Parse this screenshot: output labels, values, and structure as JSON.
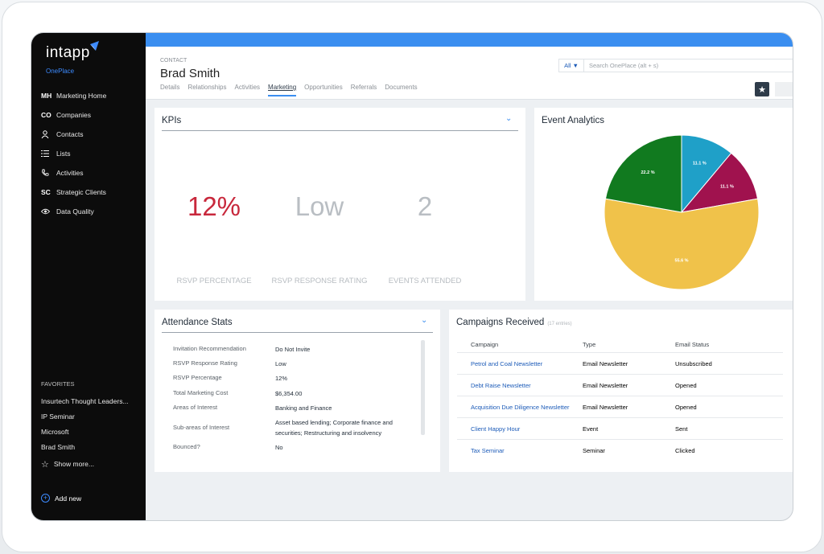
{
  "brand": {
    "logo": "intapp",
    "subbrand": "OnePlace"
  },
  "sidebar": {
    "items": [
      {
        "icon_text": "MH",
        "label": "Marketing Home"
      },
      {
        "icon_text": "CO",
        "label": "Companies"
      },
      {
        "icon_text": "",
        "icon": "person-icon",
        "label": "Contacts"
      },
      {
        "icon_text": "",
        "icon": "list-icon",
        "label": "Lists"
      },
      {
        "icon_text": "",
        "icon": "phone-icon",
        "label": "Activities"
      },
      {
        "icon_text": "SC",
        "label": "Strategic Clients"
      },
      {
        "icon_text": "",
        "icon": "eye-icon",
        "label": "Data Quality"
      }
    ],
    "favorites_heading": "FAVORITES",
    "favorites": [
      "Insurtech Thought Leaders...",
      "IP Seminar",
      "Microsoft",
      "Brad Smith"
    ],
    "show_more": "Show more...",
    "add_new": "Add new"
  },
  "header": {
    "contact_label": "CONTACT",
    "contact_name": "Brad Smith",
    "tabs": [
      "Details",
      "Relationships",
      "Activities",
      "Marketing",
      "Opportunities",
      "Referrals",
      "Documents"
    ],
    "active_tab": "Marketing",
    "search_scope": "All ▼",
    "search_placeholder": "Search OnePlace (alt + s)"
  },
  "kpis": {
    "title": "KPIs",
    "items": [
      {
        "value": "12%",
        "label": "RSVP PERCENTAGE",
        "color": "#c8283c"
      },
      {
        "value": "Low",
        "label": "RSVP RESPONSE RATING",
        "color": "#b9bec3"
      },
      {
        "value": "2",
        "label": "EVENTS ATTENDED",
        "color": "#b9bec3"
      }
    ]
  },
  "event_analytics": {
    "title": "Event Analytics",
    "slices": [
      {
        "label": "11.1 %",
        "percent": 11.1,
        "color": "#1fa0c8"
      },
      {
        "label": "11.1 %",
        "percent": 11.1,
        "color": "#a0124e"
      },
      {
        "label": "55.6 %",
        "percent": 55.6,
        "color": "#f0c24a"
      },
      {
        "label": "22.2 %",
        "percent": 22.2,
        "color": "#117a1f"
      }
    ]
  },
  "attendance": {
    "title": "Attendance Stats",
    "rows": [
      {
        "label": "Invitation Recommendation",
        "value": "Do Not Invite"
      },
      {
        "label": "RSVP Response Rating",
        "value": "Low"
      },
      {
        "label": "RSVP Percentage",
        "value": "12%"
      },
      {
        "label": "Total Marketing Cost",
        "value": "$6,354.00"
      },
      {
        "label": "Areas of Interest",
        "value": "Banking and Finance"
      },
      {
        "label": "Sub-areas of Interest",
        "value": "Asset based lending; Corporate finance and securities; Restructuring and insolvency"
      },
      {
        "label": "Bounced?",
        "value": "No"
      }
    ]
  },
  "campaigns": {
    "title": "Campaigns Received",
    "entries": "(17 entries)",
    "columns": [
      "Campaign",
      "Type",
      "Email Status"
    ],
    "rows": [
      [
        "Petrol and Coal Newsletter",
        "Email Newsletter",
        "Unsubscribed"
      ],
      [
        "Debt Raise Newsletter",
        "Email Newsletter",
        "Opened"
      ],
      [
        "Acquisition Due Diligence Newsletter",
        "Email Newsletter",
        "Opened"
      ],
      [
        "Client Happy Hour",
        "Event",
        "Sent"
      ],
      [
        "Tax Seminar",
        "Seminar",
        "Clicked"
      ]
    ]
  }
}
